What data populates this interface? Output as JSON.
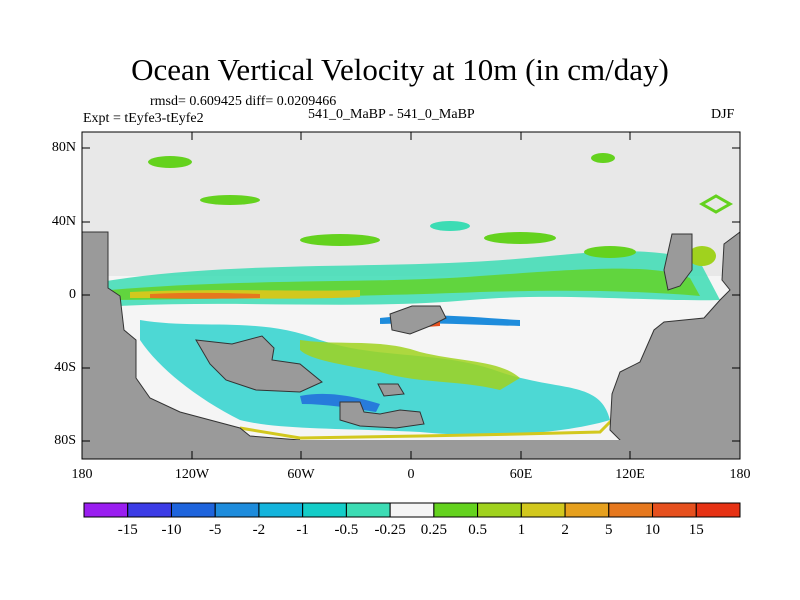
{
  "title": "Ocean Vertical Velocity at 10m (in cm/day)",
  "stats": "rmsd= 0.609425 diff= 0.0209466",
  "experiment": "Expt = tEyfe3-tEyfe2",
  "comparison": "541_0_MaBP - 541_0_MaBP",
  "season": "DJF",
  "map": {
    "lat_ticks": [
      "80N",
      "40N",
      "0",
      "40S",
      "80S"
    ],
    "lon_ticks": [
      "180",
      "120W",
      "60W",
      "0",
      "60E",
      "120E",
      "180"
    ],
    "ocean_background": "#e8e8e8",
    "land_color": "#9a9a9a"
  },
  "colorbar": {
    "labels": [
      "-15",
      "-10",
      "-5",
      "-2",
      "-1",
      "-0.5",
      "-0.25",
      "0.25",
      "0.5",
      "1",
      "2",
      "5",
      "10",
      "15"
    ],
    "colors": [
      "#9a1ef0",
      "#3c3ce6",
      "#1e64dc",
      "#1e8cdc",
      "#14b4dc",
      "#14cdc8",
      "#3cdcb4",
      "#f5f5f5",
      "#64d21e",
      "#a0d21e",
      "#d2c81e",
      "#e6a01e",
      "#e6781e",
      "#e6501e",
      "#e63214"
    ]
  }
}
